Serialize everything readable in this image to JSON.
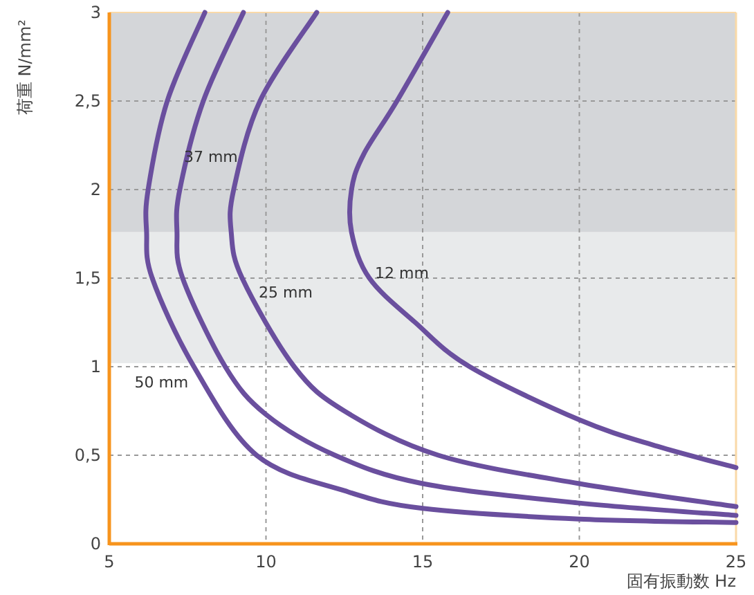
{
  "chart_data": {
    "type": "line",
    "xlabel": "固有振動数 Hz",
    "ylabel": "荷重 N/mm²",
    "xlim": [
      5,
      25
    ],
    "ylim": [
      0,
      3
    ],
    "xticks": [
      5,
      10,
      15,
      20,
      25
    ],
    "yticks": [
      0,
      {
        "value": 0.5,
        "label": "0,5"
      },
      1,
      {
        "value": 1.5,
        "label": "1,5"
      },
      2,
      {
        "value": 2.5,
        "label": "2,5"
      },
      3
    ],
    "grid": true,
    "line_style": "solid",
    "bands": [
      {
        "axis": "y",
        "from": 1.02,
        "to": 1.76,
        "color": "#e8eaeb"
      },
      {
        "axis": "y",
        "from": 1.76,
        "to": 3,
        "color": "#d4d6d9"
      }
    ],
    "series": [
      {
        "name": "50 mm",
        "color": "#6a4f9e",
        "x": [
          8.05,
          6.85,
          6.24,
          6.19,
          6.37,
          7.7,
          9.7,
          12.5,
          15,
          20,
          25
        ],
        "values": [
          3,
          2.5,
          2,
          1.76,
          1.5,
          1,
          0.5,
          0.3,
          0.2,
          0.14,
          0.12
        ]
      },
      {
        "name": "37 mm",
        "color": "#6a4f9e",
        "x": [
          9.28,
          8.0,
          7.25,
          7.16,
          7.34,
          8.7,
          10,
          12.2,
          15,
          20,
          25
        ],
        "values": [
          3,
          2.5,
          2,
          1.76,
          1.5,
          1,
          0.73,
          0.5,
          0.34,
          0.23,
          0.16
        ]
      },
      {
        "name": "25 mm",
        "color": "#6a4f9e",
        "x": [
          11.62,
          9.81,
          8.97,
          8.89,
          9.24,
          10.9,
          12.5,
          15.5,
          20,
          25
        ],
        "values": [
          3,
          2.5,
          2,
          1.76,
          1.5,
          1,
          0.75,
          0.5,
          0.34,
          0.21
        ]
      },
      {
        "name": "12 mm",
        "color": "#6a4f9e",
        "x": [
          15.8,
          14.18,
          13.12,
          12.73,
          12.73,
          13.3,
          14.76,
          16.5,
          20,
          22.5,
          25
        ],
        "values": [
          3,
          2.5,
          2.2,
          2,
          1.76,
          1.5,
          1.25,
          1,
          0.7,
          0.55,
          0.43
        ]
      }
    ]
  }
}
